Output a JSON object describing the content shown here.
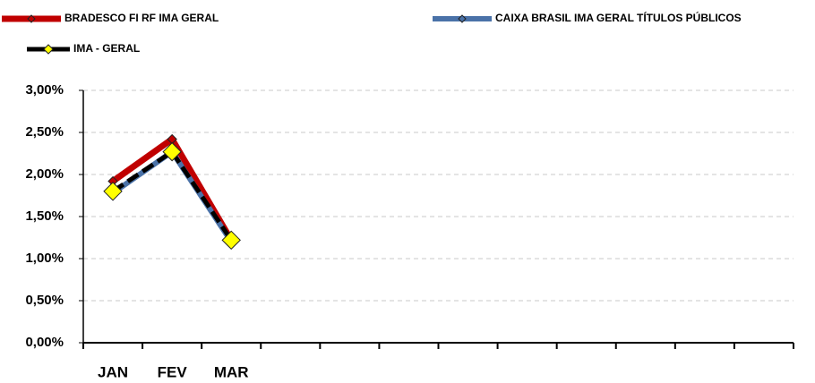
{
  "chart_data": {
    "type": "line",
    "categories": [
      "JAN",
      "FEV",
      "MAR",
      null,
      null,
      null,
      null,
      null,
      null,
      null,
      null,
      null
    ],
    "series": [
      {
        "name": "BRADESCO FI RF IMA GERAL",
        "color": "#c00000",
        "marker_color": "#c00000",
        "values": [
          1.92,
          2.42,
          1.22,
          null,
          null,
          null,
          null,
          null,
          null,
          null,
          null,
          null
        ]
      },
      {
        "name": "CAIXA BRASIL IMA GERAL TÍTULOS PÚBLICOS",
        "color": "#4a72a8",
        "marker_color": "#4a72a8",
        "values": [
          1.78,
          2.27,
          1.2,
          null,
          null,
          null,
          null,
          null,
          null,
          null,
          null,
          null
        ]
      },
      {
        "name": "IMA - GERAL",
        "color": "#000000",
        "marker_color": "#ffff00",
        "values": [
          1.8,
          2.27,
          1.22,
          null,
          null,
          null,
          null,
          null,
          null,
          null,
          null,
          null
        ]
      }
    ],
    "ylim": [
      0,
      3
    ],
    "yticks": [
      {
        "value": 0,
        "label": "0,00%"
      },
      {
        "value": 0.5,
        "label": "0,50%"
      },
      {
        "value": 1,
        "label": "1,00%"
      },
      {
        "value": 1.5,
        "label": "1,50%"
      },
      {
        "value": 2,
        "label": "2,00%"
      },
      {
        "value": 2.5,
        "label": "2,50%"
      },
      {
        "value": 3,
        "label": "3,00%"
      }
    ],
    "grid": true
  }
}
